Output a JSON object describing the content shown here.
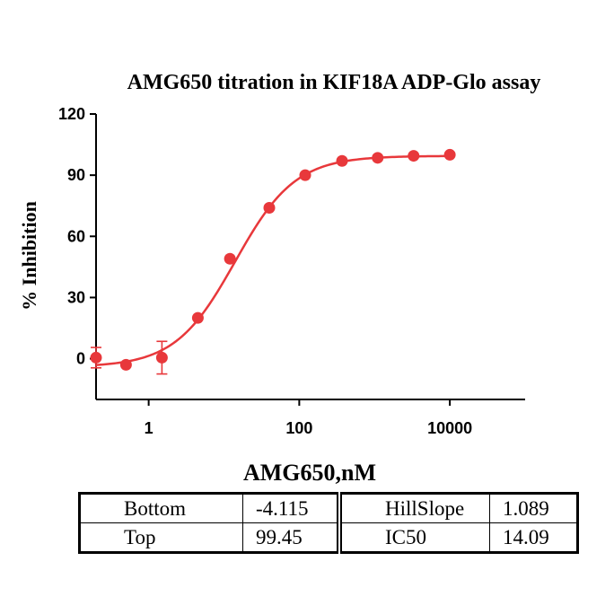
{
  "chart_data": {
    "type": "scatter",
    "title": "AMG650 titration  in KIF18A  ADP-Glo assay",
    "xlabel": "AMG650,nM",
    "ylabel": "% Inhibition",
    "x_scale": "log",
    "xlim": [
      0.2,
      100000
    ],
    "ylim": [
      -20,
      120
    ],
    "x_ticks": [
      1,
      100,
      10000
    ],
    "x_tick_labels": [
      "1",
      "100",
      "10000"
    ],
    "y_ticks": [
      0,
      30,
      60,
      90,
      120
    ],
    "y_tick_labels": [
      "0",
      "30",
      "60",
      "90",
      "120"
    ],
    "grid": false,
    "legend": "none",
    "color": "#e8383b",
    "points": [
      {
        "x": 0.2,
        "y": 0.5,
        "err": 5
      },
      {
        "x": 0.5,
        "y": -3,
        "err": 0
      },
      {
        "x": 1.5,
        "y": 0.5,
        "err": 8
      },
      {
        "x": 4.5,
        "y": 20,
        "err": 0
      },
      {
        "x": 12,
        "y": 49,
        "err": 0
      },
      {
        "x": 40,
        "y": 74,
        "err": 0
      },
      {
        "x": 120,
        "y": 90,
        "err": 0
      },
      {
        "x": 370,
        "y": 97,
        "err": 0
      },
      {
        "x": 1100,
        "y": 98.5,
        "err": 0
      },
      {
        "x": 3300,
        "y": 99.5,
        "err": 0
      },
      {
        "x": 10000,
        "y": 100,
        "err": 0
      }
    ],
    "fit": {
      "model": "4PL",
      "bottom": -4.115,
      "top": 99.45,
      "hillslope": 1.089,
      "ic50": 14.09
    }
  },
  "table": {
    "rows": [
      [
        "Bottom",
        "-4.115",
        "HillSlope",
        "1.089"
      ],
      [
        "Top",
        "99.45",
        "IC50",
        "14.09"
      ]
    ]
  }
}
